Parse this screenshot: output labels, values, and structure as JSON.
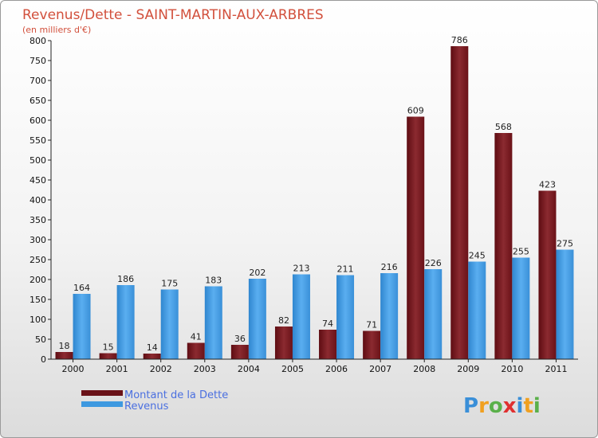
{
  "chart_data": {
    "type": "bar",
    "title": "Revenus/Dette - SAINT-MARTIN-AUX-ARBRES",
    "subtitle": "(en milliers d'€)",
    "categories": [
      "2000",
      "2001",
      "2002",
      "2003",
      "2004",
      "2005",
      "2006",
      "2007",
      "2008",
      "2009",
      "2010",
      "2011"
    ],
    "series": [
      {
        "name": "Montant de la Dette",
        "color": "#7a1a1f",
        "values": [
          18,
          15,
          14,
          41,
          36,
          82,
          74,
          71,
          609,
          786,
          568,
          423
        ]
      },
      {
        "name": "Revenus",
        "color": "#3e99e0",
        "values": [
          164,
          186,
          175,
          183,
          202,
          213,
          211,
          216,
          226,
          245,
          255,
          275
        ]
      }
    ],
    "ylim": [
      0,
      800
    ],
    "yticks": [
      0,
      50,
      100,
      150,
      200,
      250,
      300,
      350,
      400,
      450,
      500,
      550,
      600,
      650,
      700,
      750,
      800
    ],
    "grid": false,
    "legend_position": "bottom-left"
  },
  "logo": {
    "letters": [
      "P",
      "r",
      "o",
      "x",
      "i",
      "t",
      "i"
    ],
    "colors": [
      "#3a8fd8",
      "#f0a020",
      "#5ab04a",
      "#e03030",
      "#3a8fd8",
      "#f0a020",
      "#5ab04a"
    ]
  }
}
